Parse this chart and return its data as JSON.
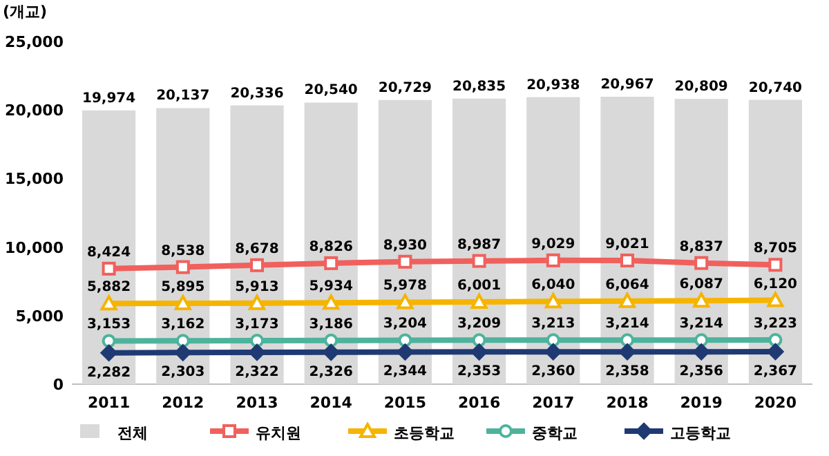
{
  "chart_data": {
    "type": "bar",
    "ylabel": "(개교)",
    "categories": [
      "2011",
      "2012",
      "2013",
      "2014",
      "2015",
      "2016",
      "2017",
      "2018",
      "2019",
      "2020"
    ],
    "ylim": [
      0,
      25000
    ],
    "yticks": [
      0,
      {
        "value": 5000,
        "label": "5,000"
      },
      {
        "value": 10000,
        "label": "10,000"
      },
      {
        "value": 15000,
        "label": "15,000"
      },
      {
        "value": 20000,
        "label": "20,000"
      },
      {
        "value": 25000,
        "label": "25,000"
      }
    ],
    "grid": false,
    "legend": "bottom",
    "series": [
      {
        "name": "전체",
        "color": "#d9d9d9",
        "values": [
          19974,
          20137,
          20336,
          20540,
          20729,
          20835,
          20938,
          20967,
          20809,
          20740
        ],
        "value_labels": [
          "19,974",
          "20,137",
          "20,336",
          "20,540",
          "20,729",
          "20,835",
          "20,938",
          "20,967",
          "20,809",
          "20,740"
        ]
      },
      {
        "name": "유치원",
        "type": "line",
        "color": "#f0605d",
        "marker": "square",
        "values": [
          8424,
          8538,
          8678,
          8826,
          8930,
          8987,
          9029,
          9021,
          8837,
          8705
        ],
        "value_labels": [
          "8,424",
          "8,538",
          "8,678",
          "8,826",
          "8,930",
          "8,987",
          "9,029",
          "9,021",
          "8,837",
          "8,705"
        ]
      },
      {
        "name": "초등학교",
        "type": "line",
        "color": "#f5b400",
        "marker": "triangle",
        "values": [
          5882,
          5895,
          5913,
          5934,
          5978,
          6001,
          6040,
          6064,
          6087,
          6120
        ],
        "value_labels": [
          "5,882",
          "5,895",
          "5,913",
          "5,934",
          "5,978",
          "6,001",
          "6,040",
          "6,064",
          "6,087",
          "6,120"
        ]
      },
      {
        "name": "중학교",
        "type": "line",
        "color": "#4db39c",
        "marker": "circle",
        "values": [
          3153,
          3162,
          3173,
          3186,
          3204,
          3209,
          3213,
          3214,
          3214,
          3223
        ],
        "value_labels": [
          "3,153",
          "3,162",
          "3,173",
          "3,186",
          "3,204",
          "3,209",
          "3,213",
          "3,214",
          "3,214",
          "3,223"
        ]
      },
      {
        "name": "고등학교",
        "type": "line",
        "color": "#1f3a73",
        "marker": "diamond",
        "values": [
          2282,
          2303,
          2322,
          2326,
          2344,
          2353,
          2360,
          2358,
          2356,
          2367
        ],
        "value_labels": [
          "2,282",
          "2,303",
          "2,322",
          "2,326",
          "2,344",
          "2,353",
          "2,360",
          "2,358",
          "2,356",
          "2,367"
        ]
      }
    ]
  }
}
